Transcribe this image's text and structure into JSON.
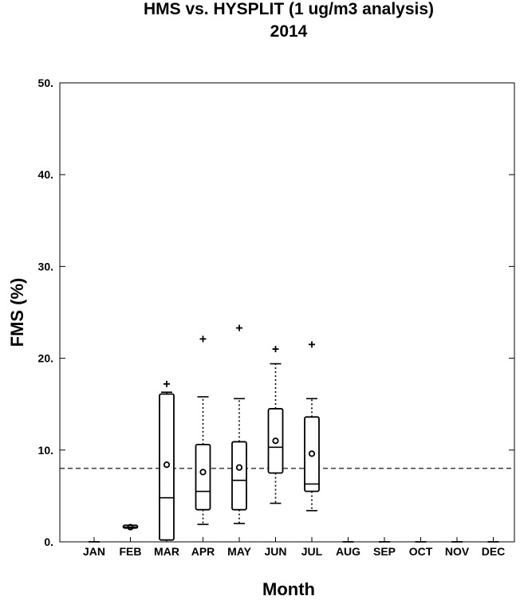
{
  "chart_data": {
    "type": "box",
    "title": "HMS vs. HYSPLIT (1 ug/m3 analysis)",
    "subtitle": "2014",
    "xlabel": "Month",
    "ylabel": "FMS (%)",
    "ylim": [
      0,
      50
    ],
    "yticks": [
      "0.",
      "10.",
      "20.",
      "30.",
      "40.",
      "50."
    ],
    "categories": [
      "JAN",
      "FEB",
      "MAR",
      "APR",
      "MAY",
      "JUN",
      "JUL",
      "AUG",
      "SEP",
      "OCT",
      "NOV",
      "DEC"
    ],
    "reference_line": 8.0,
    "boxes": [
      {
        "month": "JAN",
        "min": 0,
        "q1": 0,
        "median": 0,
        "q3": 0,
        "max": 0,
        "mean": null,
        "outliers": []
      },
      {
        "month": "FEB",
        "min": 1.5,
        "q1": 1.5,
        "median": 1.6,
        "q3": 1.8,
        "max": 1.8,
        "mean": 1.6,
        "outliers": []
      },
      {
        "month": "MAR",
        "min": 0.2,
        "q1": 0.2,
        "median": 4.8,
        "q3": 16.1,
        "max": 16.3,
        "mean": 8.4,
        "outliers": [
          17.2
        ],
        "whisker_style": "solid"
      },
      {
        "month": "APR",
        "min": 1.9,
        "q1": 3.5,
        "median": 5.5,
        "q3": 10.6,
        "max": 15.8,
        "mean": 7.6,
        "outliers": [
          22.1
        ],
        "whisker_style": "dashed"
      },
      {
        "month": "MAY",
        "min": 2.0,
        "q1": 3.5,
        "median": 6.7,
        "q3": 10.9,
        "max": 15.6,
        "mean": 8.1,
        "outliers": [
          23.3
        ],
        "whisker_style": "dashed"
      },
      {
        "month": "JUN",
        "min": 4.2,
        "q1": 7.5,
        "median": 10.3,
        "q3": 14.5,
        "max": 19.4,
        "mean": 11.0,
        "outliers": [
          21.0
        ],
        "whisker_style": "dashed"
      },
      {
        "month": "JUL",
        "min": 3.4,
        "q1": 5.5,
        "median": 6.3,
        "q3": 13.6,
        "max": 15.6,
        "mean": 9.6,
        "outliers": [
          21.5
        ],
        "whisker_style": "dashed"
      },
      {
        "month": "AUG",
        "min": 0,
        "q1": 0,
        "median": 0,
        "q3": 0,
        "max": 0,
        "mean": null,
        "outliers": []
      },
      {
        "month": "SEP",
        "min": 0,
        "q1": 0,
        "median": 0,
        "q3": 0,
        "max": 0,
        "mean": null,
        "outliers": []
      },
      {
        "month": "OCT",
        "min": 0,
        "q1": 0,
        "median": 0,
        "q3": 0,
        "max": 0,
        "mean": null,
        "outliers": []
      },
      {
        "month": "NOV",
        "min": 0,
        "q1": 0,
        "median": 0,
        "q3": 0,
        "max": 0,
        "mean": null,
        "outliers": []
      },
      {
        "month": "DEC",
        "min": 0,
        "q1": 0,
        "median": 0,
        "q3": 0,
        "max": 0,
        "mean": null,
        "outliers": []
      }
    ]
  }
}
